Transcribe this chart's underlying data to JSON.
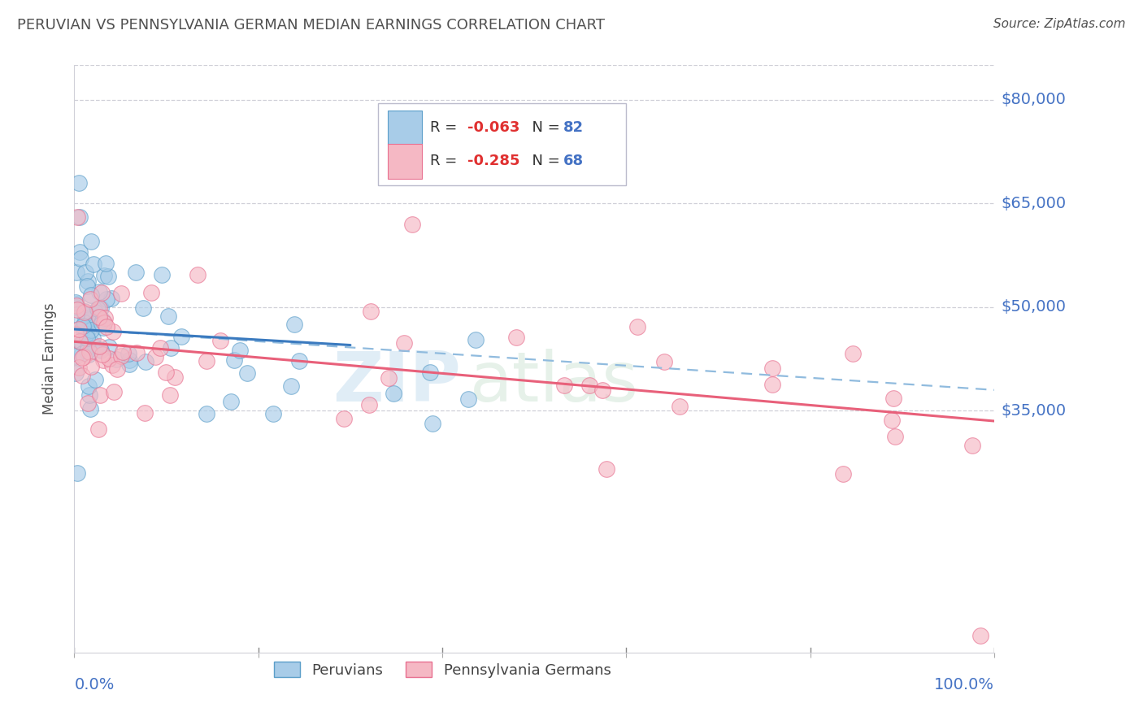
{
  "title": "PERUVIAN VS PENNSYLVANIA GERMAN MEDIAN EARNINGS CORRELATION CHART",
  "source": "Source: ZipAtlas.com",
  "ylabel": "Median Earnings",
  "legend_entry1_r": "-0.063",
  "legend_entry1_n": "82",
  "legend_entry2_r": "-0.285",
  "legend_entry2_n": "68",
  "legend_label1": "Peruvians",
  "legend_label2": "Pennsylvania Germans",
  "blue_fill": "#a8cce8",
  "blue_edge": "#5b9ec9",
  "pink_fill": "#f5b8c4",
  "pink_edge": "#e87090",
  "blue_line_color": "#3a7abf",
  "pink_line_color": "#e8607a",
  "dashed_line_color": "#90bbde",
  "axis_label_color": "#4472c4",
  "title_color": "#505050",
  "grid_color": "#d0d0d8",
  "ytick_vals": [
    35000,
    50000,
    65000,
    80000
  ],
  "ytick_labels": [
    "$35,000",
    "$50,000",
    "$65,000",
    "$80,000"
  ],
  "xlim": [
    0,
    1.0
  ],
  "ylim": [
    0,
    85000
  ],
  "blue_line_x0": 0.0,
  "blue_line_x1": 0.3,
  "blue_line_y0": 46800,
  "blue_line_y1": 44500,
  "dashed_line_x0": 0.0,
  "dashed_line_x1": 1.0,
  "dashed_line_y0": 46800,
  "dashed_line_y1": 38000,
  "pink_line_x0": 0.0,
  "pink_line_x1": 1.0,
  "pink_line_y0": 45000,
  "pink_line_y1": 33500
}
